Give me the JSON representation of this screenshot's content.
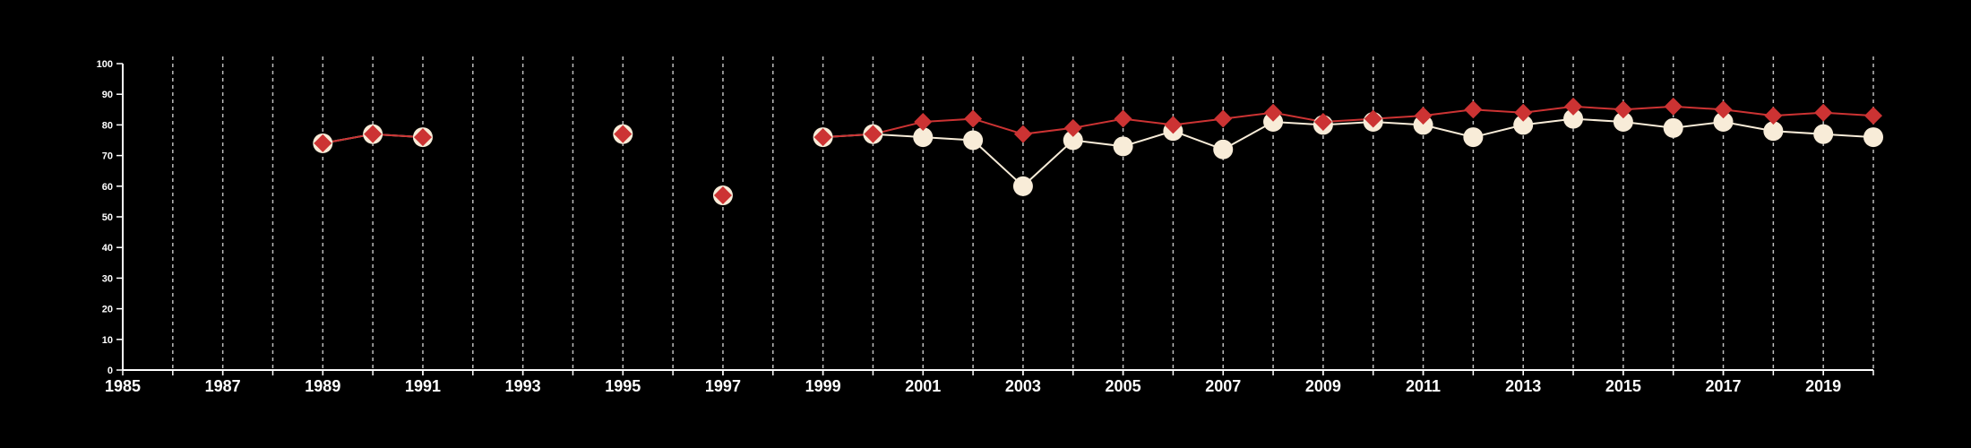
{
  "colors": {
    "background": "#000000",
    "axis": "#ffffff",
    "grid": "#bdbdbd",
    "series_light": "#f8ecd8",
    "series_red": "#cc3333"
  },
  "chart_data": {
    "type": "line",
    "title": "",
    "xlabel": "",
    "ylabel": "",
    "xlim": [
      1985,
      2020
    ],
    "ylim": [
      0,
      100
    ],
    "y_ticks": [
      0,
      10,
      20,
      30,
      40,
      50,
      60,
      70,
      80,
      90,
      100
    ],
    "x_tick_labels": [
      1985,
      1987,
      1989,
      1991,
      1993,
      1995,
      1997,
      1999,
      2001,
      2003,
      2005,
      2007,
      2009,
      2011,
      2013,
      2015,
      2017,
      2019
    ],
    "x_gridlines": [
      1986,
      1987,
      1988,
      1989,
      1990,
      1991,
      1992,
      1993,
      1994,
      1995,
      1996,
      1997,
      1998,
      1999,
      2000,
      2001,
      2002,
      2003,
      2004,
      2005,
      2006,
      2007,
      2008,
      2009,
      2010,
      2011,
      2012,
      2013,
      2014,
      2015,
      2016,
      2017,
      2018,
      2019,
      2020
    ],
    "grid": "vertical dashed",
    "legend": "none",
    "series": [
      {
        "marker": "circle",
        "color": "#f8ecd8",
        "points": [
          [
            1989,
            74
          ],
          [
            1990,
            77
          ],
          [
            1991,
            76
          ],
          [
            1995,
            77
          ],
          [
            1997,
            57
          ],
          [
            1999,
            76
          ],
          [
            2000,
            77
          ],
          [
            2001,
            76
          ],
          [
            2002,
            75
          ],
          [
            2003,
            60
          ],
          [
            2004,
            75
          ],
          [
            2005,
            73
          ],
          [
            2006,
            78
          ],
          [
            2007,
            72
          ],
          [
            2008,
            81
          ],
          [
            2009,
            80
          ],
          [
            2010,
            81
          ],
          [
            2011,
            80
          ],
          [
            2012,
            76
          ],
          [
            2013,
            80
          ],
          [
            2014,
            82
          ],
          [
            2015,
            81
          ],
          [
            2016,
            79
          ],
          [
            2017,
            81
          ],
          [
            2018,
            78
          ],
          [
            2019,
            77
          ],
          [
            2020,
            76
          ]
        ]
      },
      {
        "marker": "diamond",
        "color": "#cc3333",
        "points": [
          [
            1989,
            74
          ],
          [
            1990,
            77
          ],
          [
            1991,
            76
          ],
          [
            1995,
            77
          ],
          [
            1997,
            57
          ],
          [
            1999,
            76
          ],
          [
            2000,
            77
          ],
          [
            2001,
            81
          ],
          [
            2002,
            82
          ],
          [
            2003,
            77
          ],
          [
            2004,
            79
          ],
          [
            2005,
            82
          ],
          [
            2006,
            80
          ],
          [
            2007,
            82
          ],
          [
            2008,
            84
          ],
          [
            2009,
            81
          ],
          [
            2010,
            82
          ],
          [
            2011,
            83
          ],
          [
            2012,
            85
          ],
          [
            2013,
            84
          ],
          [
            2014,
            86
          ],
          [
            2015,
            85
          ],
          [
            2016,
            86
          ],
          [
            2017,
            85
          ],
          [
            2018,
            83
          ],
          [
            2019,
            84
          ],
          [
            2020,
            83
          ]
        ]
      }
    ]
  }
}
